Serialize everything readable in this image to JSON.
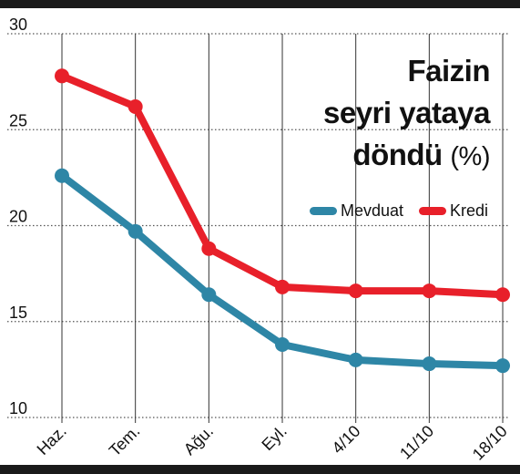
{
  "title": {
    "line1": "Faizin",
    "line2": "seyri yataya",
    "line3": "döndü",
    "unit": "(%)"
  },
  "colors": {
    "deposit": "#2e86a6",
    "loan": "#e8202a",
    "frame": "#1a1a1a",
    "grid": "#555555"
  },
  "chart_data": {
    "type": "line",
    "title": "Faizin seyri yataya döndü (%)",
    "categories": [
      "Haz.",
      "Tem.",
      "Ağu.",
      "Eyl.",
      "4/10",
      "11/10",
      "18/10"
    ],
    "y_ticks": [
      10,
      15,
      20,
      25,
      30
    ],
    "ylim": [
      10,
      30
    ],
    "grid": "horizontal-dotted",
    "legend_position": "top-right",
    "series": [
      {
        "name": "Mevduat",
        "color": "#2e86a6",
        "values": [
          22.6,
          19.7,
          16.4,
          13.8,
          13.0,
          12.8,
          12.7
        ]
      },
      {
        "name": "Kredi",
        "color": "#e8202a",
        "values": [
          27.8,
          26.2,
          18.8,
          16.8,
          16.6,
          16.6,
          16.4
        ]
      }
    ]
  }
}
